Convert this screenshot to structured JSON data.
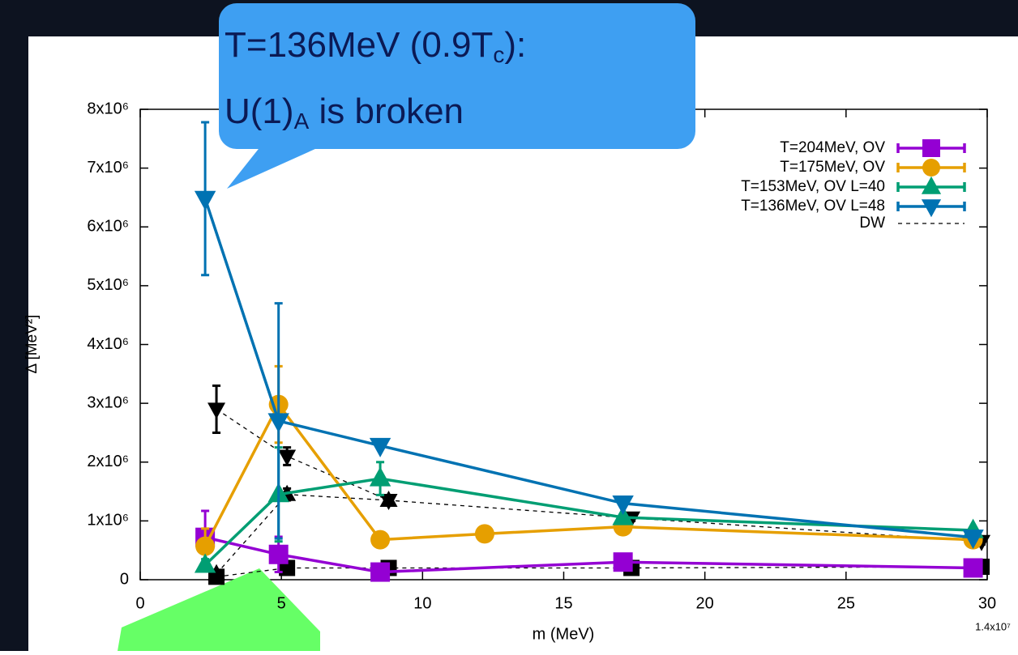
{
  "chart_data": {
    "type": "errorbar-line",
    "y_label": "Δ [MeV²]",
    "x_label": "m (MeV)",
    "xlim": [
      0,
      30
    ],
    "xticks": [
      0,
      5,
      10,
      15,
      20,
      25,
      30
    ],
    "ylim": [
      0,
      8000000
    ],
    "yticks": [
      0,
      {
        "value": 1000000,
        "label": "1x10⁶"
      },
      {
        "value": 2000000,
        "label": "2x10⁶"
      },
      {
        "value": 3000000,
        "label": "3x10⁶"
      },
      {
        "value": 4000000,
        "label": "4x10⁶"
      },
      {
        "value": 5000000,
        "label": "5x10⁶"
      },
      {
        "value": 6000000,
        "label": "6x10⁶"
      },
      {
        "value": 7000000,
        "label": "7x10⁶"
      },
      {
        "value": 8000000,
        "label": "8x10⁶"
      }
    ],
    "legend": "upper right",
    "series": [
      {
        "name": "T=204MeV, OV",
        "color": "#9400d3",
        "marker": "square",
        "x": [
          2.3,
          4.9,
          8.5,
          17.1,
          29.5
        ],
        "values": [
          720000,
          430000,
          130000,
          300000,
          200000
        ],
        "errors": [
          450000,
          300000,
          50000,
          50000,
          30000
        ]
      },
      {
        "name": "T=175MeV, OV",
        "color": "#e69f00",
        "marker": "circle",
        "x": [
          2.3,
          4.9,
          8.5,
          12.2,
          17.1,
          29.5
        ],
        "values": [
          570000,
          2980000,
          680000,
          780000,
          900000,
          680000
        ],
        "errors": [
          300000,
          650000,
          50000,
          50000,
          50000,
          50000
        ]
      },
      {
        "name": "T=153MeV, OV L=40",
        "color": "#009e73",
        "marker": "triangle-up",
        "x": [
          2.3,
          4.9,
          8.5,
          17.1,
          29.5
        ],
        "values": [
          250000,
          1450000,
          1720000,
          1060000,
          840000
        ],
        "errors": [
          100000,
          800000,
          280000,
          50000,
          50000
        ]
      },
      {
        "name": "T=136MeV, OV L=48",
        "color": "#0072b2",
        "marker": "triangle-down",
        "x": [
          2.3,
          4.9,
          8.5,
          17.1,
          29.5
        ],
        "values": [
          6480000,
          2700000,
          2280000,
          1300000,
          720000
        ],
        "errors": [
          1300000,
          2000000,
          50000,
          50000,
          50000
        ]
      }
    ],
    "dw": {
      "name": "DW",
      "color": "#000000",
      "sets": [
        {
          "marker": "square",
          "x": [
            2.7,
            5.2,
            8.8,
            17.4,
            29.8
          ],
          "values": [
            50000,
            200000,
            200000,
            200000,
            220000
          ],
          "errors": [
            30000,
            30000,
            30000,
            30000,
            30000
          ]
        },
        {
          "marker": "triangle-down",
          "x": [
            2.7,
            5.2,
            8.8,
            17.4,
            29.8
          ],
          "values": [
            2900000,
            2100000,
            1350000,
            1050000,
            650000
          ],
          "errors": [
            400000,
            150000,
            80000,
            50000,
            50000
          ]
        },
        {
          "marker": "triangle-up",
          "x": [
            2.7,
            5.2,
            8.8
          ],
          "values": [
            100000,
            1450000,
            1350000
          ],
          "errors": [
            50000,
            100000,
            80000
          ]
        }
      ]
    },
    "corner_note": "1.4x10⁷",
    "callout": [
      [
        "T=136MeV (0.9T",
        "c",
        "):"
      ],
      [
        "U(1)",
        "A",
        " is broken"
      ]
    ]
  }
}
